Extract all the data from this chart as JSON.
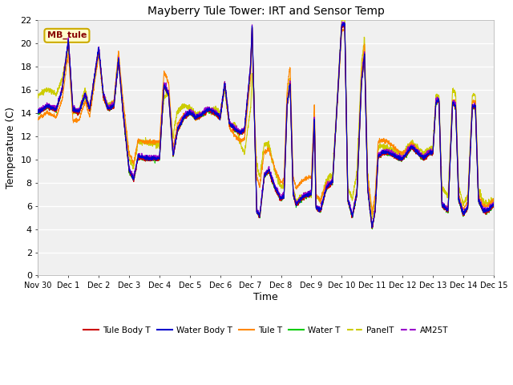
{
  "title": "Mayberry Tule Tower: IRT and Sensor Temp",
  "ylabel": "Temperature (C)",
  "xlabel": "Time",
  "ylim": [
    0,
    22
  ],
  "yticks": [
    0,
    2,
    4,
    6,
    8,
    10,
    12,
    14,
    16,
    18,
    20,
    22
  ],
  "xtick_labels": [
    "Nov 30",
    "Dec 1",
    "Dec 2",
    "Dec 3",
    "Dec 4",
    "Dec 5",
    "Dec 6",
    "Dec 7",
    "Dec 8",
    "Dec 9",
    "Dec 10",
    "Dec 11",
    "Dec 12",
    "Dec 13",
    "Dec 14",
    "Dec 15"
  ],
  "fig_facecolor": "#ffffff",
  "plot_facecolor": "#f0f0f0",
  "grid_color": "#e0e0e0",
  "legend_entries": [
    "Tule Body T",
    "Water Body T",
    "Tule T",
    "Water T",
    "PanelT",
    "AM25T"
  ],
  "legend_colors": [
    "#cc0000",
    "#0000cc",
    "#ff8800",
    "#00cc00",
    "#cccc00",
    "#9900cc"
  ],
  "legend_linestyles": [
    "-",
    "-",
    "-",
    "-",
    "-",
    "-"
  ],
  "label_box_color": "#ffffcc",
  "label_box_text": "MB_tule",
  "label_box_text_color": "#880000",
  "label_box_edge_color": "#ccaa00"
}
